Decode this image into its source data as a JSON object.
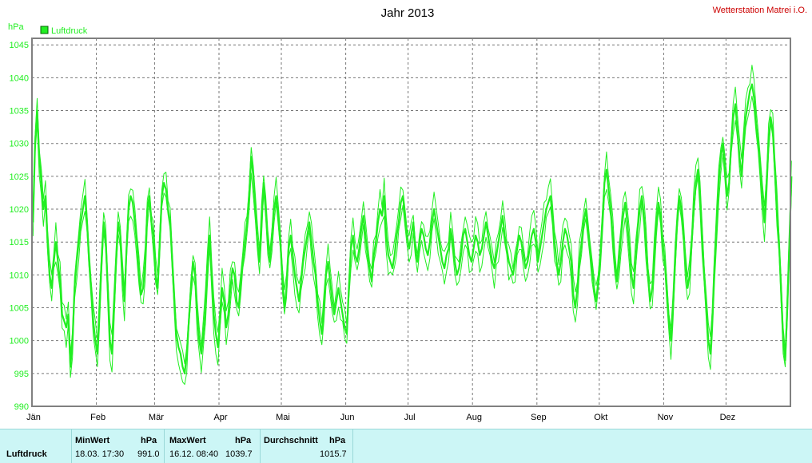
{
  "chart_data": {
    "type": "line",
    "title": "Jahr 2013",
    "station": "Wetterstation Matrei i.O.",
    "ylabel": "hPa",
    "legend": "Luftdruck",
    "legend_placement": "top-left",
    "grid": true,
    "ylim": [
      990,
      1046
    ],
    "yticks": [
      990,
      995,
      1000,
      1005,
      1010,
      1015,
      1020,
      1025,
      1030,
      1035,
      1040,
      1045
    ],
    "xticks": [
      "Jän",
      "Feb",
      "Mär",
      "Apr",
      "Mai",
      "Jun",
      "Jul",
      "Aug",
      "Sep",
      "Okt",
      "Nov",
      "Dez"
    ],
    "x_days_per_month": [
      31,
      28,
      31,
      30,
      31,
      30,
      31,
      31,
      30,
      31,
      30,
      31
    ],
    "series_color": "#22ee22",
    "series": [
      {
        "kind": "mean",
        "values": [
          1018,
          1030,
          1035,
          1028,
          1024,
          1020,
          1022,
          1015,
          1010,
          1008,
          1012,
          1015,
          1012,
          1009,
          1004,
          1003,
          1002,
          1004,
          996,
          1000,
          1008,
          1012,
          1015,
          1018,
          1020,
          1022,
          1018,
          1012,
          1008,
          1003,
          1000,
          998,
          1005,
          1012,
          1018,
          1015,
          1008,
          1000,
          998,
          1005,
          1012,
          1018,
          1016,
          1010,
          1006,
          1014,
          1020,
          1022,
          1021,
          1018,
          1015,
          1010,
          1007,
          1008,
          1012,
          1020,
          1022,
          1018,
          1016,
          1010,
          1008,
          1015,
          1022,
          1024,
          1023,
          1020,
          1018,
          1012,
          1006,
          1001,
          999,
          998,
          996,
          995,
          998,
          1003,
          1008,
          1012,
          1010,
          1004,
          1000,
          998,
          1001,
          1005,
          1012,
          1016,
          1010,
          1004,
          1001,
          999,
          1003,
          1008,
          1006,
          1002,
          1004,
          1008,
          1011,
          1010,
          1006,
          1005,
          1009,
          1012,
          1015,
          1018,
          1022,
          1028,
          1025,
          1020,
          1015,
          1012,
          1018,
          1024,
          1020,
          1015,
          1012,
          1016,
          1020,
          1022,
          1019,
          1015,
          1010,
          1005,
          1008,
          1014,
          1016,
          1013,
          1010,
          1008,
          1006,
          1009,
          1012,
          1014,
          1016,
          1018,
          1015,
          1012,
          1010,
          1006,
          1003,
          1001,
          1005,
          1010,
          1012,
          1009,
          1006,
          1004,
          1006,
          1008,
          1006,
          1004,
          1002,
          1001,
          1008,
          1014,
          1016,
          1013,
          1012,
          1014,
          1017,
          1019,
          1016,
          1013,
          1011,
          1009,
          1013,
          1015,
          1018,
          1020,
          1019,
          1022,
          1016,
          1013,
          1012,
          1011,
          1013,
          1016,
          1018,
          1021,
          1022,
          1019,
          1016,
          1014,
          1016,
          1018,
          1014,
          1012,
          1015,
          1017,
          1016,
          1014,
          1013,
          1015,
          1018,
          1020,
          1018,
          1016,
          1014,
          1012,
          1011,
          1013,
          1014,
          1017,
          1015,
          1012,
          1010,
          1011,
          1013,
          1016,
          1017,
          1015,
          1013,
          1012,
          1014,
          1016,
          1015,
          1013,
          1014,
          1016,
          1018,
          1016,
          1014,
          1012,
          1011,
          1013,
          1015,
          1017,
          1019,
          1016,
          1014,
          1012,
          1011,
          1010,
          1012,
          1014,
          1016,
          1015,
          1013,
          1011,
          1012,
          1014,
          1016,
          1017,
          1015,
          1012,
          1014,
          1016,
          1018,
          1020,
          1021,
          1022,
          1019,
          1015,
          1012,
          1010,
          1012,
          1015,
          1017,
          1016,
          1014,
          1012,
          1007,
          1005,
          1008,
          1012,
          1015,
          1018,
          1020,
          1017,
          1014,
          1011,
          1008,
          1006,
          1009,
          1013,
          1018,
          1024,
          1026,
          1023,
          1020,
          1016,
          1012,
          1009,
          1012,
          1016,
          1019,
          1021,
          1018,
          1014,
          1010,
          1008,
          1012,
          1017,
          1020,
          1022,
          1019,
          1015,
          1010,
          1006,
          1008,
          1013,
          1018,
          1021,
          1019,
          1015,
          1012,
          1008,
          1003,
          1000,
          1005,
          1012,
          1018,
          1022,
          1020,
          1016,
          1012,
          1008,
          1010,
          1015,
          1020,
          1024,
          1026,
          1022,
          1016,
          1010,
          1005,
          1000,
          998,
          1004,
          1012,
          1018,
          1024,
          1028,
          1030,
          1026,
          1022,
          1024,
          1030,
          1034,
          1036,
          1032,
          1028,
          1025,
          1030,
          1034,
          1036,
          1038,
          1039,
          1037,
          1033,
          1030,
          1026,
          1022,
          1018,
          1024,
          1030,
          1034,
          1032,
          1026,
          1020,
          1015,
          1008,
          1000,
          997,
          1005,
          1015,
          1025
        ]
      }
    ],
    "band": {
      "note": "min/max spread around mean",
      "offsets_upper": 2.2,
      "offsets_lower": 2.2
    },
    "stats": {
      "label": "Luftdruck",
      "min_header": "MinWert",
      "min_unit": "hPa",
      "min_time": "18.03.  17:30",
      "min_value": "991.0",
      "max_header": "MaxWert",
      "max_unit": "hPa",
      "max_time": "16.12.  08:40",
      "max_value": "1039.7",
      "avg_header": "Durchschnitt",
      "avg_unit": "hPa",
      "avg_value": "1015.7"
    }
  }
}
